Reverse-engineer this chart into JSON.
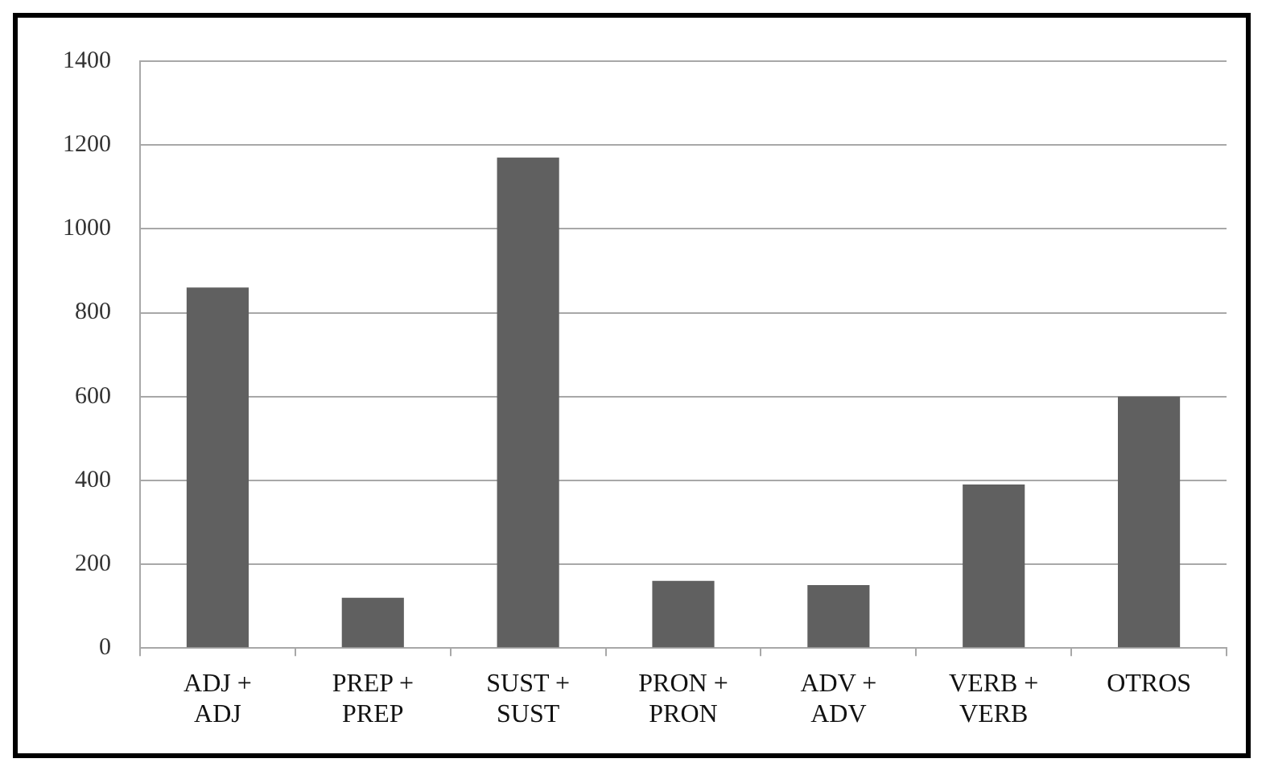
{
  "chart_data": {
    "type": "bar",
    "categories": [
      "ADJ + ADJ",
      "PREP + PREP",
      "SUST + SUST",
      "PRON + PRON",
      "ADV + ADV",
      "VERB + VERB",
      "OTROS"
    ],
    "values": [
      860,
      120,
      1170,
      160,
      150,
      390,
      600
    ],
    "color": "#606060",
    "ylim": [
      0,
      1400
    ],
    "yticks": [
      0,
      200,
      400,
      600,
      800,
      1000,
      1200,
      1400
    ],
    "grid": "y",
    "legend": false
  }
}
